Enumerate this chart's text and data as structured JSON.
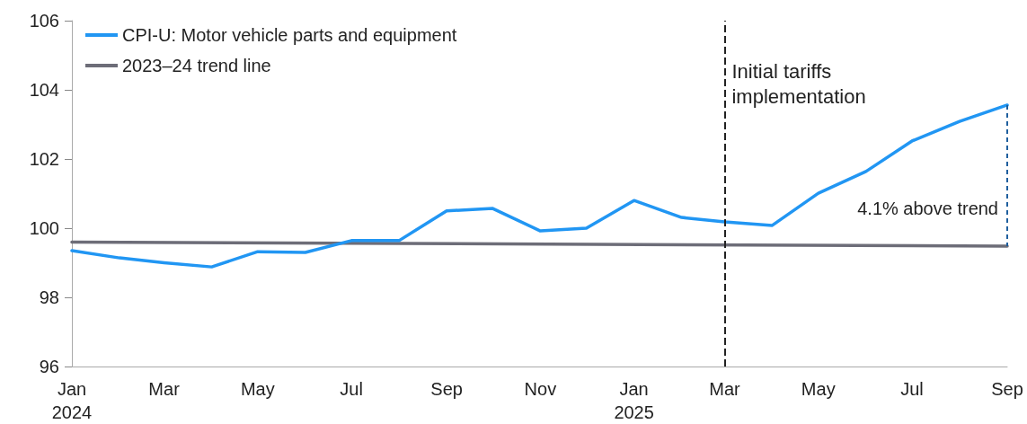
{
  "chart_data": {
    "type": "line",
    "x": [
      "2024-01",
      "2024-02",
      "2024-03",
      "2024-04",
      "2024-05",
      "2024-06",
      "2024-07",
      "2024-08",
      "2024-09",
      "2024-10",
      "2024-11",
      "2024-12",
      "2025-01",
      "2025-02",
      "2025-03",
      "2025-04",
      "2025-05",
      "2025-06",
      "2025-07",
      "2025-08",
      "2025-09"
    ],
    "series": [
      {
        "name": "CPI-U: Motor vehicle parts and equipment",
        "color": "#2196f3",
        "values": [
          99.35,
          99.14,
          99.0,
          98.88,
          99.32,
          99.3,
          99.64,
          99.64,
          100.5,
          100.57,
          99.92,
          100.0,
          100.8,
          100.31,
          100.18,
          100.08,
          101.01,
          101.64,
          102.52,
          103.09,
          103.56
        ]
      },
      {
        "name": "2023–24 trend line",
        "color": "#6d6d78",
        "x": [
          "2024-01",
          "2025-09"
        ],
        "values": [
          99.6,
          99.48
        ]
      }
    ],
    "xlim": [
      "2024-01",
      "2025-09"
    ],
    "xticks": [
      {
        "value": "2024-01",
        "label": "Jan\n2024"
      },
      {
        "value": "2024-03",
        "label": "Mar"
      },
      {
        "value": "2024-05",
        "label": "May"
      },
      {
        "value": "2024-07",
        "label": "Jul"
      },
      {
        "value": "2024-09",
        "label": "Sep"
      },
      {
        "value": "2024-11",
        "label": "Nov"
      },
      {
        "value": "2025-01",
        "label": "Jan\n2025"
      },
      {
        "value": "2025-03",
        "label": "Mar"
      },
      {
        "value": "2025-05",
        "label": "May"
      },
      {
        "value": "2025-07",
        "label": "Jul"
      },
      {
        "value": "2025-09",
        "label": "Sep"
      }
    ],
    "ylim": [
      96,
      106
    ],
    "yticks": [
      96,
      98,
      100,
      102,
      104,
      106
    ],
    "ref_lines": [
      {
        "axis": "x",
        "value": "2025-03",
        "label": "Initial tariffs\nimplementation",
        "color": "#222222",
        "line_style": "dashed"
      }
    ],
    "annotations": [
      "4.1% above trend"
    ],
    "grid": false,
    "legend": "top left",
    "marker": "none",
    "line_style": "solid"
  }
}
